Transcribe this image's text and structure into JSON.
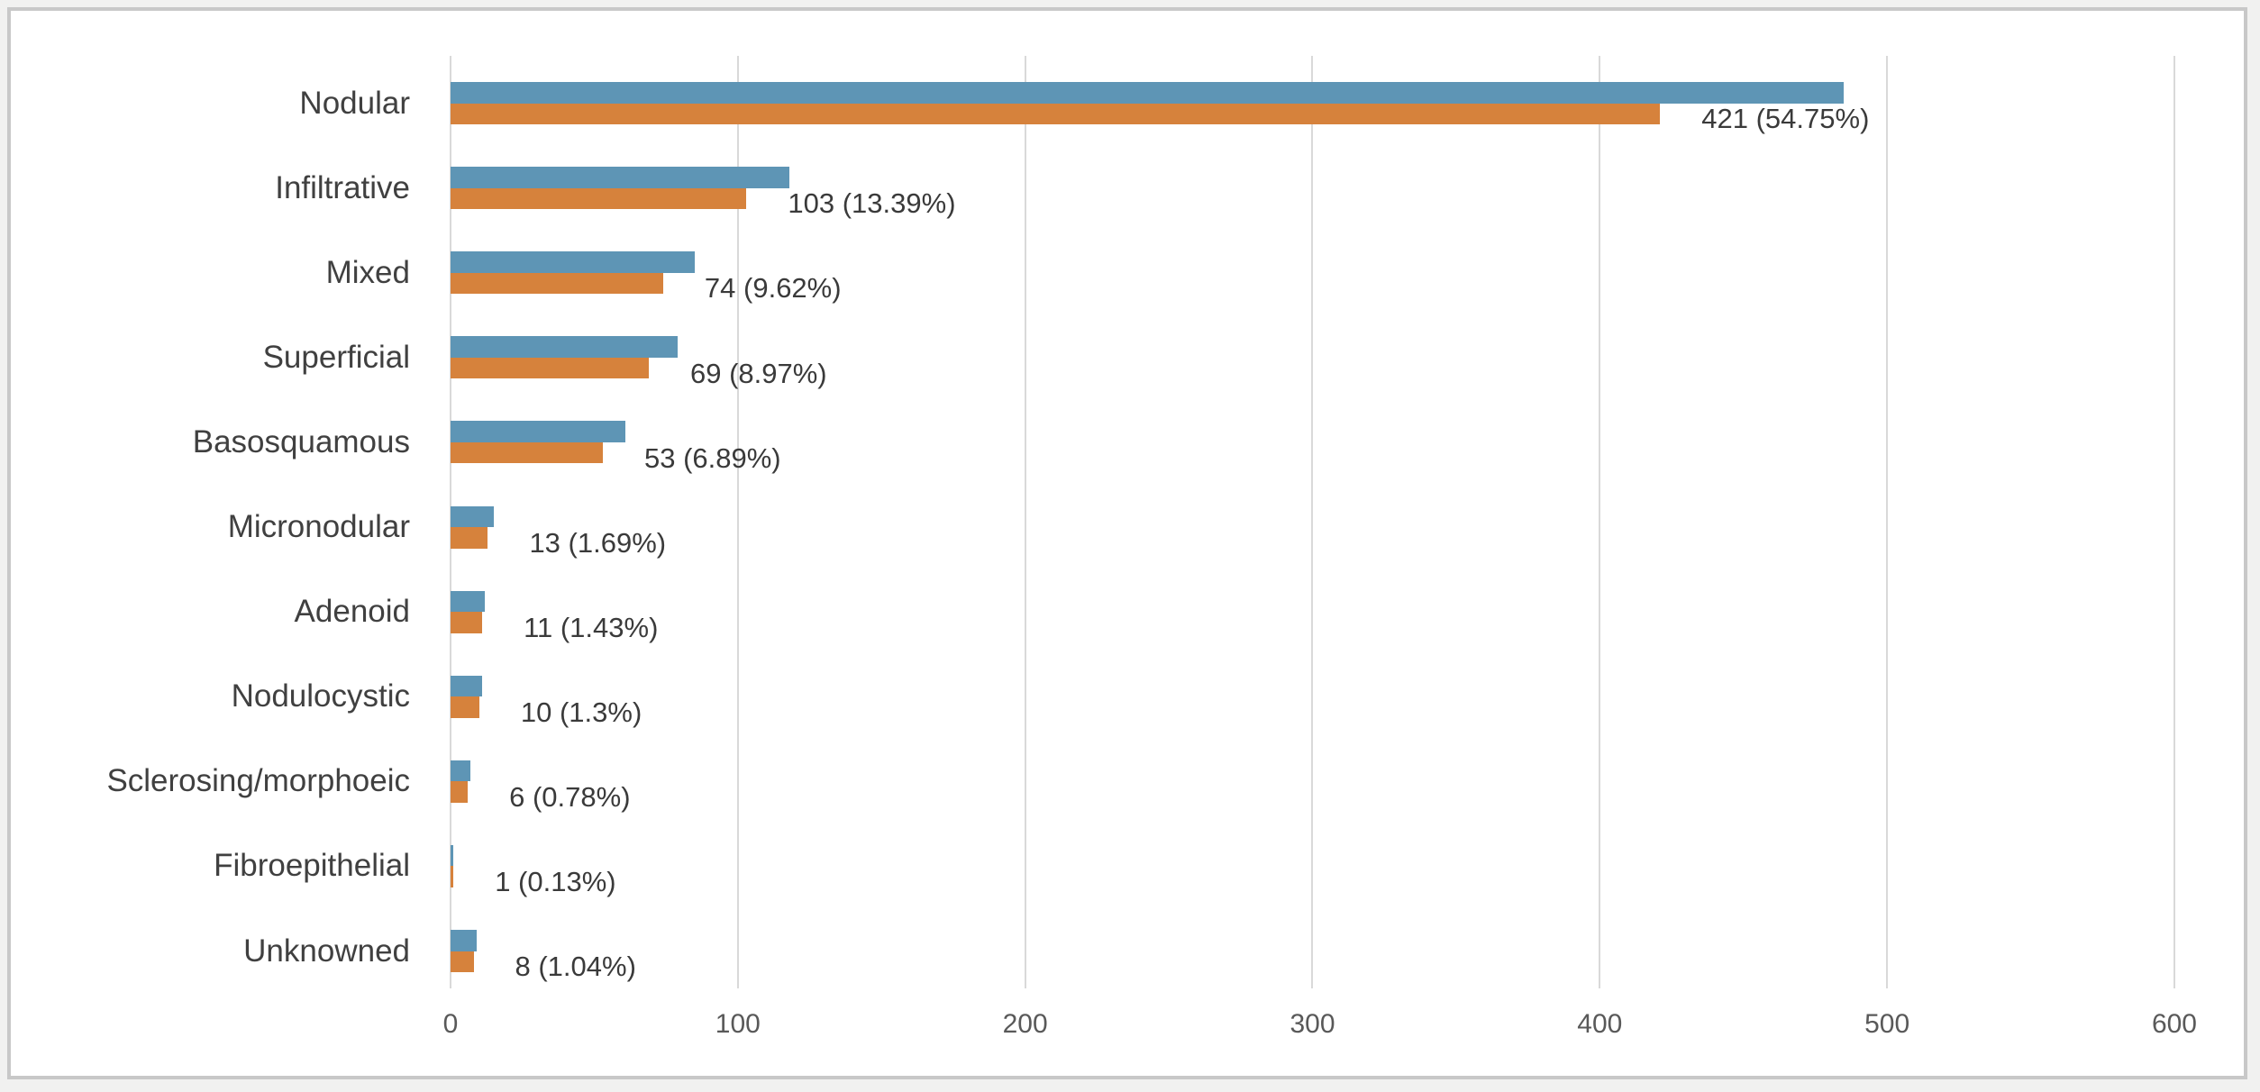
{
  "chart_data": {
    "type": "bar",
    "orientation": "horizontal",
    "title": "",
    "xlabel": "",
    "ylabel": "",
    "xlim": [
      0,
      600
    ],
    "xticks": [
      "0",
      "100",
      "200",
      "300",
      "400",
      "500",
      "600"
    ],
    "grid": "vertical",
    "legend_position": "none",
    "categories": [
      "Nodular",
      "Infiltrative",
      "Mixed",
      "Superficial",
      "Basosquamous",
      "Micronodular",
      "Adenoid",
      "Nodulocystic",
      "Sclerosing/morphoeic",
      "Fibroepithelial",
      "Unknowned"
    ],
    "series": [
      {
        "name": "blue-series",
        "color": "#5E95B5",
        "values": [
          485,
          118,
          85,
          79,
          61,
          15,
          12,
          11,
          7,
          1,
          9
        ]
      },
      {
        "name": "orange-series",
        "color": "#D6823C",
        "values": [
          421,
          103,
          74,
          69,
          53,
          13,
          11,
          10,
          6,
          1,
          8
        ]
      }
    ],
    "data_labels": [
      "421 (54.75%)",
      "103 (13.39%)",
      "74 (9.62%)",
      "69 (8.97%)",
      "53 (6.89%)",
      "13 (1.69%)",
      "11 (1.43%)",
      "10 (1.3%)",
      "6 (0.78%)",
      "1 (0.13%)",
      "8 (1.04%)"
    ]
  },
  "colors": {
    "page_background": "#f1f1f0",
    "chart_background": "#ffffff",
    "frame_border": "#c8c8c8",
    "gridline": "#d9d9d9",
    "tick_text": "#595959",
    "label_text": "#3a3a3a",
    "category_text": "#404040"
  }
}
